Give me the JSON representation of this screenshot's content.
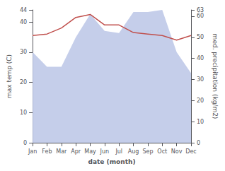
{
  "chart_data": {
    "type": "line",
    "xlabel": "date (month)",
    "ylabel": "max temp (C)",
    "y2label": "med. precipitation (kg/m2)",
    "categories": [
      "Jan",
      "Feb",
      "Mar",
      "Apr",
      "May",
      "Jun",
      "Jul",
      "Aug",
      "Sep",
      "Oct",
      "Nov",
      "Dec"
    ],
    "series": [
      {
        "type": "area",
        "axis": "y2",
        "color": "#bfc9e8",
        "values": [
          43.0,
          36.0,
          36.0,
          50.0,
          61.0,
          53.0,
          52.0,
          62.0,
          62.0,
          63.0,
          43.0,
          33.0
        ]
      },
      {
        "type": "line",
        "color": "#c0504d",
        "values": [
          35.5,
          36.0,
          38.0,
          41.5,
          42.5,
          39.0,
          39.0,
          36.5,
          36.0,
          35.5,
          34.0,
          35.5
        ]
      }
    ],
    "ylim": [
      0,
      44
    ],
    "yticks": [
      0,
      10,
      20,
      30,
      40
    ],
    "y2lim": [
      0,
      63
    ],
    "y2ticks": [
      0,
      10,
      20,
      30,
      40,
      50,
      60
    ],
    "grid": false
  }
}
